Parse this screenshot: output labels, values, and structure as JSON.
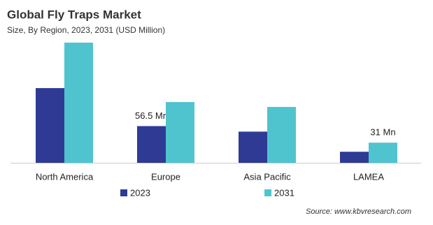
{
  "chart_data": {
    "type": "bar",
    "title": "Global Fly Traps Market",
    "subtitle": "Size, By Region, 2023, 2031 (USD Million)",
    "categories": [
      "North America",
      "Europe",
      "Asia Pacific",
      "LAMEA"
    ],
    "series": [
      {
        "name": "2023",
        "color": "#2e3a94",
        "values": [
          115,
          56.5,
          48,
          17
        ],
        "value_labels": [
          null,
          "56.5 Mn",
          null,
          null
        ]
      },
      {
        "name": "2031",
        "color": "#4fc4cf",
        "values": [
          185,
          93.5,
          86,
          31
        ],
        "value_labels": [
          null,
          null,
          null,
          "31 Mn"
        ]
      }
    ],
    "source": "Source: www.kbvresearch.com"
  }
}
